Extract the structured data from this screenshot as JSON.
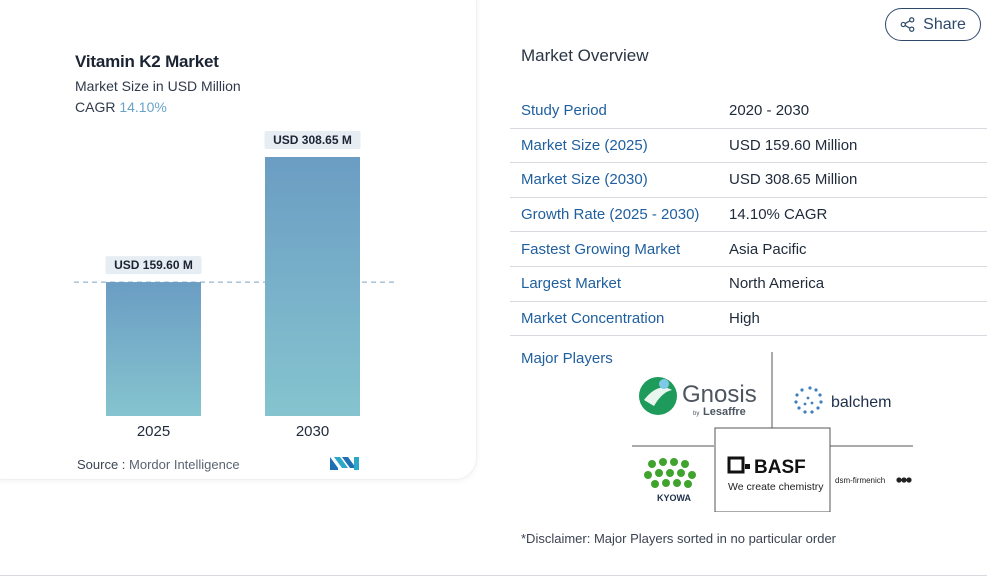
{
  "chart_data": {
    "type": "bar",
    "title": "Vitamin K2 Market",
    "subtitle": "Market Size in USD Million",
    "cagr_label": "CAGR",
    "cagr_value": "14.10%",
    "categories": [
      "2025",
      "2030"
    ],
    "values": [
      159.6,
      308.65
    ],
    "value_labels": [
      "USD 159.60 M",
      "USD 308.65 M"
    ],
    "ylim": [
      0,
      308.65
    ],
    "grid": false,
    "colors": {
      "bar_top": "#6b9dc3",
      "bar_bottom": "#85c4cf",
      "label_bg": "#e6edf3",
      "reference_line": "#7da4c4"
    }
  },
  "source": {
    "label": "Source :",
    "value": "Mordor Intelligence"
  },
  "share": {
    "label": "Share",
    "icon": "share-icon"
  },
  "overview": {
    "title": "Market Overview",
    "rows": [
      {
        "key": "Study Period",
        "value": "2020 - 2030"
      },
      {
        "key": "Market Size (2025)",
        "value": "USD 159.60 Million"
      },
      {
        "key": "Market Size (2030)",
        "value": "USD 308.65 Million"
      },
      {
        "key": "Growth Rate (2025 - 2030)",
        "value": "14.10% CAGR"
      },
      {
        "key": "Fastest Growing Market",
        "value": "Asia Pacific"
      },
      {
        "key": "Largest Market",
        "value": "North America"
      },
      {
        "key": "Market Concentration",
        "value": "High"
      }
    ]
  },
  "major_players": {
    "label": "Major Players",
    "logos": [
      {
        "name": "Gnosis",
        "sub": "Lesaffre",
        "by": "by"
      },
      {
        "name": "balchem"
      },
      {
        "name": "KYOWA"
      },
      {
        "name": "BASF",
        "tagline": "We create chemistry"
      },
      {
        "name": "dsm-firmenich"
      }
    ]
  },
  "disclaimer": "*Disclaimer: Major Players sorted in no particular order"
}
